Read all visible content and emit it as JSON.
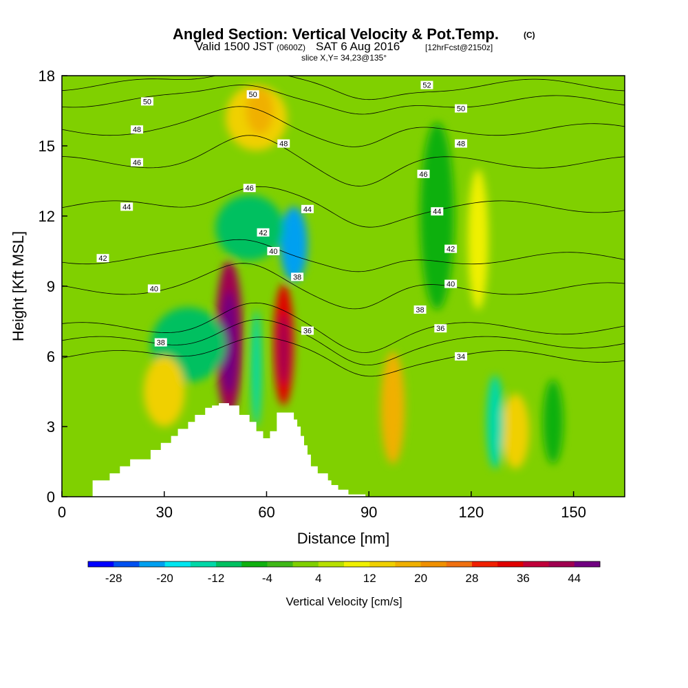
{
  "title": {
    "main": "Angled Section: Vertical Velocity & Pot.Temp.",
    "main_suffix": "(C)",
    "valid_prefix": "Valid 1500 JST",
    "valid_utc": "(0600Z)",
    "valid_date": "SAT 6 Aug 2016",
    "forecast": "[12hrFcst@2150z]",
    "slice": "slice X,Y= 34,23@135°"
  },
  "chart_data": {
    "type": "heatmap",
    "xlabel": "Distance [nm]",
    "ylabel": "Height [Kft MSL]",
    "xlim": [
      0,
      165
    ],
    "ylim": [
      0,
      18
    ],
    "x_ticks": [
      0,
      30,
      60,
      90,
      120,
      150
    ],
    "x_tick_labels": [
      "0",
      "30",
      "60",
      "90",
      "120",
      "150"
    ],
    "y_ticks": [
      0,
      3,
      6,
      9,
      12,
      15,
      18
    ],
    "y_tick_labels": [
      "0",
      "3",
      "6",
      "9",
      "12",
      "15",
      "18"
    ],
    "background_value": 0,
    "vertical_velocity_cells": [
      {
        "x": 49,
        "y": 6.8,
        "rx": 4,
        "ry": 3.3,
        "value": 40
      },
      {
        "x": 49,
        "y": 6.6,
        "rx": 2.5,
        "ry": 2.2,
        "value": 46
      },
      {
        "x": 65,
        "y": 6.5,
        "rx": 3,
        "ry": 2.6,
        "value": 34
      },
      {
        "x": 65,
        "y": 6.3,
        "rx": 1.6,
        "ry": 1.5,
        "value": 42
      },
      {
        "x": 97,
        "y": 3.8,
        "rx": 3.5,
        "ry": 2.4,
        "value": 18
      },
      {
        "x": 133,
        "y": 2.8,
        "rx": 4,
        "ry": 1.6,
        "value": 12
      },
      {
        "x": 57,
        "y": 16.2,
        "rx": 9,
        "ry": 1.4,
        "value": 12
      },
      {
        "x": 58,
        "y": 16.5,
        "rx": 4,
        "ry": 1,
        "value": 18
      },
      {
        "x": 68,
        "y": 10.8,
        "rx": 4,
        "ry": 1.6,
        "value": -22
      },
      {
        "x": 55,
        "y": 11.5,
        "rx": 10,
        "ry": 1.4,
        "value": -12
      },
      {
        "x": 57,
        "y": 5.5,
        "rx": 1.5,
        "ry": 2.5,
        "value": -16
      },
      {
        "x": 37,
        "y": 6.5,
        "rx": 11,
        "ry": 1.6,
        "value": -10
      },
      {
        "x": 127,
        "y": 3.2,
        "rx": 2.5,
        "ry": 2,
        "value": -14
      },
      {
        "x": 144,
        "y": 3.2,
        "rx": 3,
        "ry": 1.8,
        "value": -8
      },
      {
        "x": 110,
        "y": 12,
        "rx": 5,
        "ry": 4,
        "value": -6
      },
      {
        "x": 122,
        "y": 11,
        "rx": 3,
        "ry": 3,
        "value": 8
      },
      {
        "x": 30,
        "y": 4.5,
        "rx": 6,
        "ry": 1.5,
        "value": 12
      }
    ],
    "terrain": {
      "x": [
        0,
        9,
        9,
        14,
        14,
        17,
        17,
        20,
        20,
        26,
        26,
        29,
        29,
        32,
        32,
        34,
        34,
        37,
        37,
        39,
        39,
        42,
        42,
        44,
        44,
        46,
        46,
        49,
        49,
        52,
        52,
        55,
        55,
        57,
        57,
        59,
        59,
        61,
        61,
        63,
        63,
        68,
        68,
        69,
        69,
        70,
        70,
        71,
        71,
        72,
        72,
        73,
        73,
        75,
        75,
        78,
        78,
        79,
        79,
        81,
        81,
        84,
        84,
        89,
        89,
        165
      ],
      "y": [
        0,
        0,
        0.7,
        0.7,
        1.0,
        1.0,
        1.3,
        1.3,
        1.6,
        1.6,
        2.0,
        2.0,
        2.3,
        2.3,
        2.6,
        2.6,
        2.9,
        2.9,
        3.2,
        3.2,
        3.5,
        3.5,
        3.8,
        3.8,
        3.9,
        3.9,
        4.0,
        4.0,
        3.9,
        3.9,
        3.5,
        3.5,
        3.2,
        3.2,
        2.8,
        2.8,
        2.5,
        2.5,
        2.8,
        2.8,
        3.6,
        3.6,
        3.3,
        3.3,
        3.0,
        3.0,
        2.6,
        2.6,
        2.2,
        2.2,
        1.8,
        1.8,
        1.3,
        1.3,
        1.0,
        1.0,
        0.7,
        0.7,
        0.5,
        0.5,
        0.3,
        0.3,
        0.1,
        0.1,
        0,
        0
      ]
    },
    "theta_isolines": [
      {
        "value": 34,
        "label_at": [
          117,
          6.0
        ]
      },
      {
        "value": 36,
        "label_at": [
          111,
          7.2
        ]
      },
      {
        "value": 38,
        "label_at": [
          29,
          6.6
        ]
      },
      {
        "value": 40,
        "label_at": [
          27,
          8.9
        ]
      },
      {
        "value": 42,
        "label_at": [
          12,
          10.2
        ]
      },
      {
        "value": 44,
        "label_at": [
          19,
          12.4
        ]
      },
      {
        "value": 46,
        "label_at": [
          22,
          14.3
        ]
      },
      {
        "value": 48,
        "label_at": [
          22,
          15.7
        ]
      },
      {
        "value": 50,
        "label_at": [
          25,
          16.9
        ]
      },
      {
        "value": 52,
        "label_at": [
          107,
          17.6
        ]
      }
    ],
    "theta_labels": [
      {
        "text": "50",
        "x": 25,
        "y": 16.9
      },
      {
        "text": "48",
        "x": 22,
        "y": 15.7
      },
      {
        "text": "46",
        "x": 22,
        "y": 14.3
      },
      {
        "text": "44",
        "x": 19,
        "y": 12.4
      },
      {
        "text": "42",
        "x": 12,
        "y": 10.2
      },
      {
        "text": "40",
        "x": 27,
        "y": 8.9
      },
      {
        "text": "38",
        "x": 29,
        "y": 6.6
      },
      {
        "text": "50",
        "x": 56,
        "y": 17.2
      },
      {
        "text": "48",
        "x": 65,
        "y": 15.1
      },
      {
        "text": "46",
        "x": 55,
        "y": 13.2
      },
      {
        "text": "44",
        "x": 72,
        "y": 12.3
      },
      {
        "text": "42",
        "x": 59,
        "y": 11.3
      },
      {
        "text": "40",
        "x": 62,
        "y": 10.5
      },
      {
        "text": "38",
        "x": 69,
        "y": 9.4
      },
      {
        "text": "36",
        "x": 72,
        "y": 7.1
      },
      {
        "text": "52",
        "x": 107,
        "y": 17.6
      },
      {
        "text": "50",
        "x": 117,
        "y": 16.6
      },
      {
        "text": "48",
        "x": 117,
        "y": 15.1
      },
      {
        "text": "46",
        "x": 106,
        "y": 13.8
      },
      {
        "text": "44",
        "x": 110,
        "y": 12.2
      },
      {
        "text": "42",
        "x": 114,
        "y": 10.6
      },
      {
        "text": "40",
        "x": 114,
        "y": 9.1
      },
      {
        "text": "38",
        "x": 105,
        "y": 8.0
      },
      {
        "text": "36",
        "x": 111,
        "y": 7.2
      },
      {
        "text": "34",
        "x": 117,
        "y": 6.0
      }
    ],
    "colorbar": {
      "title": "Vertical Velocity [cm/s]",
      "levels": [
        -32,
        -28,
        -24,
        -20,
        -16,
        -12,
        -8,
        -4,
        0,
        4,
        8,
        12,
        16,
        20,
        24,
        28,
        32,
        36,
        40,
        44,
        48
      ],
      "colors": [
        "#0000ff",
        "#0050f0",
        "#00a0f0",
        "#00e6f0",
        "#00d8a8",
        "#00c060",
        "#10b010",
        "#40b818",
        "#80d000",
        "#b8e000",
        "#f0f000",
        "#f0d000",
        "#f0b000",
        "#f09000",
        "#f07010",
        "#f02000",
        "#e00000",
        "#c0003a",
        "#a00050",
        "#700080"
      ],
      "tick_labels": [
        "-28",
        "-20",
        "-12",
        "-4",
        "4",
        "12",
        "20",
        "28",
        "36",
        "44"
      ],
      "tick_values": [
        -28,
        -20,
        -12,
        -4,
        4,
        12,
        20,
        28,
        36,
        44
      ]
    }
  }
}
